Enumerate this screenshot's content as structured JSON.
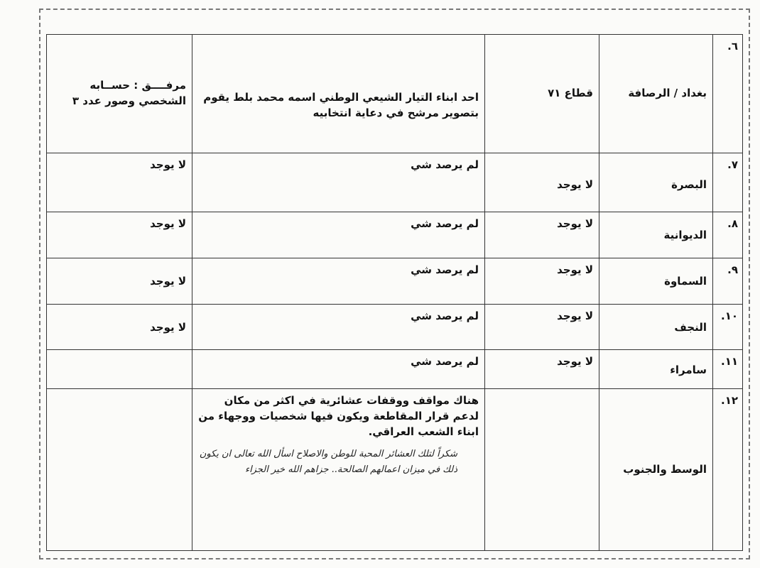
{
  "rows": [
    {
      "no": "٦.",
      "province": "بغداد / الرصافة",
      "area": "قطاع ٧١",
      "observation": "احد ابناء التيار الشيعي الوطني اسمه محمد بلط يقوم بتصوير مرشح في دعاية انتخابيه",
      "notes": "مرفــــق : حســابه الشخصي وصور عدد ٣"
    },
    {
      "no": "٧.",
      "province": "البصرة",
      "area": "لا يوجد",
      "observation": "لم يرصد شي",
      "notes": "لا يوجد"
    },
    {
      "no": "٨.",
      "province": "الديوانية",
      "area": "لا يوجد",
      "observation": "لم يرصد شي",
      "notes": "لا يوجد"
    },
    {
      "no": "٩.",
      "province": "السماوة",
      "area": "لا يوجد",
      "observation": "لم يرصد شي",
      "notes": "لا يوجد"
    },
    {
      "no": "١٠.",
      "province": "النجف",
      "area": "لا يوجد",
      "observation": "لم يرصد شي",
      "notes": "لا يوجد"
    },
    {
      "no": "١١.",
      "province": "سامراء",
      "area": "لا يوجد",
      "observation": "لم يرصد شي",
      "notes": ""
    },
    {
      "no": "١٢.",
      "province": "الوسط والجنوب",
      "area": "",
      "observation": "هناك مواقف ووقفات عشائرية في اكثر من مكان لدعم قرار المقاطعة ويكون فيها شخصيات ووجهاء من ابناء الشعب العراقي.",
      "handwritten": "شكراً لتلك العشائر المحبة للوطن والاصلاح اسأل الله تعالى ان يكون ذلك في ميزان اعمالهم الصالحة.. جزاهم الله خير الجزاء",
      "notes": ""
    }
  ]
}
